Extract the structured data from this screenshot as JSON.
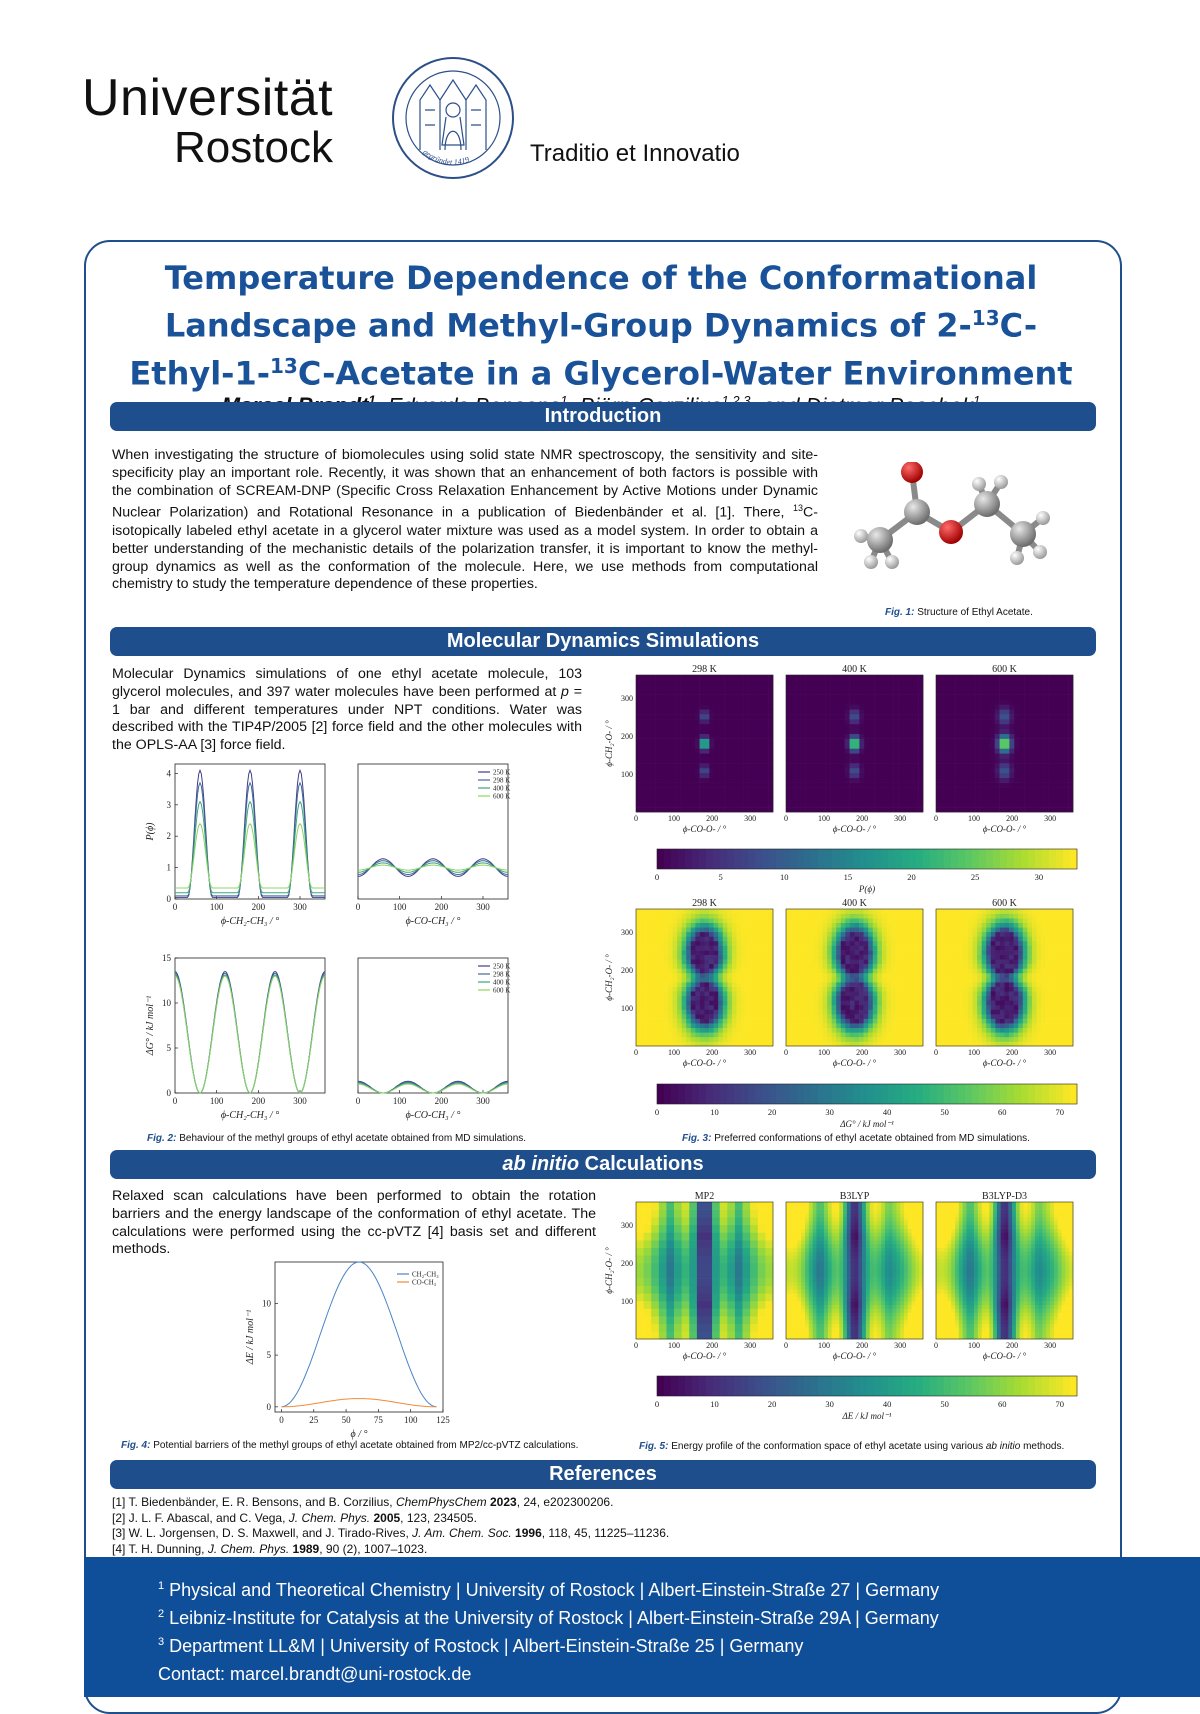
{
  "header": {
    "logo_line1": "Universität",
    "logo_line2": "Rostock",
    "seal_text": "gegründet 1419",
    "motto": "Traditio et Innovatio"
  },
  "title": {
    "line1": "Temperature Dependence of the Conformational",
    "line2a": "Landscape and Methyl-Group Dynamics of 2-",
    "sup1": "13",
    "line2b": "C-",
    "line3a": "Ethyl-1-",
    "sup2": "13",
    "line3b": "C-Acetate in a Glycerol-Water Environment"
  },
  "authors": {
    "presenter": "Marcel Brandt",
    "presenter_sup": "1",
    "a2": ", Edvards Bensons",
    "a2_sup": "1",
    "a3": ", Björn Corzilius",
    "a3_sup": "1,2,3",
    "a4": ", and Dietmar Paschek",
    "a4_sup": "1"
  },
  "intro": {
    "heading": "Introduction",
    "text_a": "When investigating the structure of biomolecules using solid state NMR spectroscopy, the sensitivity and site-specificity play an important role. Recently, it was shown that an enhancement of both factors is possible with the combination of SCREAM-DNP (Specific Cross Relaxation Enhancement by Active Motions under Dynamic Nuclear Polarization) and Rotational Resonance in a publication of Biedenbänder et al. [1]. There, ",
    "text_sup": "13",
    "text_b": "C-isotopically labeled ethyl acetate in a glycerol water mixture was used as a model system. In order to obtain a better understanding of the mechanistic details of the polarization transfer, it is important to know the methyl-group dynamics as well as the conformation of the molecule. Here, we use methods from computational chemistry to study the temperature dependence of these properties.",
    "fig1_label": "Fig. 1:",
    "fig1_text": "Structure of Ethyl Acetate."
  },
  "md": {
    "heading": "Molecular Dynamics Simulations",
    "text_a": "Molecular Dynamics simulations of one ethyl acetate molecule, 103 glycerol molecules, and 397 water molecules have been performed at ",
    "text_p": "p",
    "text_b": " = 1 bar and different temperatures under NPT conditions. Water was described with the TIP4P/2005 [2] force field and the other molecules with the OPLS-AA [3] force field.",
    "fig2_label": "Fig. 2:",
    "fig2_text": "Behaviour of the methyl groups of ethyl acetate obtained from MD simulations.",
    "fig3_label": "Fig. 3:",
    "fig3_text": "Preferred conformations of ethyl acetate obtained from MD simulations.",
    "top_titles": [
      "298 K",
      "400 K",
      "600 K"
    ],
    "bottom_titles": [
      "298 K",
      "400 K",
      "600 K"
    ],
    "cbar1_label": "P(ϕ)",
    "cbar1_ticks": [
      "0",
      "5",
      "10",
      "15",
      "20",
      "25",
      "30"
    ],
    "cbar2_label": "ΔG° / kJ mol⁻¹",
    "cbar2_ticks": [
      "0",
      "10",
      "20",
      "30",
      "40",
      "50",
      "60",
      "70"
    ],
    "heat_xlabel": "ϕ-CO-O- / °",
    "heat_ylabel": "ϕ-CH₂-O- / °"
  },
  "abinitio": {
    "heading_italic": "ab initio",
    "heading_rest": " Calculations",
    "text": "Relaxed scan calculations have been performed to obtain the rotation barriers and the energy landscape of the conformation of ethyl acetate. The calculations were performed using the cc-pVTZ [4] basis set and different methods.",
    "fig4_label": "Fig. 4:",
    "fig4_text": "Potential barriers of the methyl groups of ethyl acetate obtained from MP2/cc-pVTZ calculations.",
    "fig5_label": "Fig. 5:",
    "fig5_text_a": "Energy profile of the conformation space of ethyl acetate using various ",
    "fig5_text_i": "ab initio",
    "fig5_text_b": " methods.",
    "method_titles": [
      "MP2",
      "B3LYP",
      "B3LYP-D3"
    ],
    "cbar_label": "ΔE / kJ mol⁻¹",
    "cbar_ticks": [
      "0",
      "10",
      "20",
      "30",
      "40",
      "50",
      "60",
      "70"
    ]
  },
  "references": {
    "heading": "References",
    "r1a": "[1] T. Biedenbänder, E. R. Bensons, and B. Corzilius, ",
    "r1j": "ChemPhysChem",
    "r1y": " 2023",
    "r1b": ", 24, e202300206.",
    "r2a": "[2] J. L. F. Abascal, and C. Vega, ",
    "r2j": "J. Chem. Phys.",
    "r2y": " 2005",
    "r2b": ", 123, 234505.",
    "r3a": "[3] W. L. Jorgensen, D. S. Maxwell, and J. Tirado-Rives, ",
    "r3j": "J. Am. Chem. Soc.",
    "r3y": " 1996",
    "r3b": ", 118, 45, 11225–11236.",
    "r4a": "[4] T. H. Dunning, ",
    "r4j": "J. Chem. Phys.",
    "r4y": " 1989",
    "r4b": ", 90 (2), 1007–1023."
  },
  "footer": {
    "aff1_sup": "1",
    "aff1": " Physical and Theoretical Chemistry | University of Rostock | Albert-Einstein-Straße 27 | Germany",
    "aff2_sup": "2",
    "aff2": " Leibniz-Institute for Catalysis at the University of Rostock | Albert-Einstein-Straße 29A | Germany",
    "aff3_sup": "3",
    "aff3": " Department LL&M | University of Rostock | Albert-Einstein-Straße 25 | Germany",
    "contact": "Contact: marcel.brandt@uni-rostock.de"
  },
  "colors": {
    "brand_blue": "#1f4e8c",
    "title_blue": "#1a5299",
    "footer_blue": "#0f4e98"
  },
  "chart_data": [
    {
      "type": "line",
      "id": "fig2a",
      "xlabel": "ϕ-CH₂-CH₃ / °",
      "ylabel": "P(ϕ)",
      "xlim": [
        0,
        360
      ],
      "ylim": [
        0,
        4.3
      ],
      "xticks": [
        "0",
        "100",
        "200",
        "300"
      ],
      "yticks": [
        "0",
        "1",
        "2",
        "3",
        "4"
      ],
      "series": [
        {
          "name": "250 K",
          "peak": 4.1,
          "min": 0.05,
          "color": "#3e3d8c"
        },
        {
          "name": "298 K",
          "peak": 3.7,
          "min": 0.1,
          "color": "#3f6c96"
        },
        {
          "name": "400 K",
          "peak": 3.1,
          "min": 0.2,
          "color": "#3da57d"
        },
        {
          "name": "600 K",
          "peak": 2.4,
          "min": 0.35,
          "color": "#8bd464"
        }
      ]
    },
    {
      "type": "line",
      "id": "fig2b",
      "xlabel": "ϕ-CO-CH₃ / °",
      "ylabel": "",
      "xlim": [
        0,
        360
      ],
      "ylim": [
        0,
        4.3
      ],
      "xticks": [
        "0",
        "100",
        "200",
        "300"
      ],
      "yticks": [],
      "legend": [
        "250 K",
        "298 K",
        "400 K",
        "600 K"
      ],
      "series": [
        {
          "name": "250 K",
          "mean": 1.0,
          "amp": 0.28,
          "color": "#3e3d8c"
        },
        {
          "name": "298 K",
          "mean": 1.0,
          "amp": 0.22,
          "color": "#3f6c96"
        },
        {
          "name": "400 K",
          "mean": 1.0,
          "amp": 0.15,
          "color": "#3da57d"
        },
        {
          "name": "600 K",
          "mean": 1.0,
          "amp": 0.08,
          "color": "#8bd464"
        }
      ]
    },
    {
      "type": "line",
      "id": "fig2c",
      "xlabel": "ϕ-CH₂-CH₃ / °",
      "ylabel": "ΔG° / kJ mol⁻¹",
      "xlim": [
        0,
        360
      ],
      "ylim": [
        0,
        15
      ],
      "xticks": [
        "0",
        "100",
        "200",
        "300"
      ],
      "yticks": [
        "0",
        "5",
        "10",
        "15"
      ],
      "series": [
        {
          "name": "250 K",
          "max": 13.5,
          "color": "#3e3d8c"
        },
        {
          "name": "298 K",
          "max": 13.3,
          "color": "#3f6c96"
        },
        {
          "name": "400 K",
          "max": 13.1,
          "color": "#3da57d"
        },
        {
          "name": "600 K",
          "max": 13.0,
          "color": "#8bd464"
        }
      ]
    },
    {
      "type": "line",
      "id": "fig2d",
      "xlabel": "ϕ-CO-CH₃ / °",
      "ylabel": "",
      "xlim": [
        0,
        360
      ],
      "ylim": [
        0,
        15
      ],
      "xticks": [
        "0",
        "100",
        "200",
        "300"
      ],
      "yticks": [],
      "legend": [
        "250 K",
        "298 K",
        "400 K",
        "600 K"
      ],
      "series": [
        {
          "name": "250 K",
          "max": 1.3,
          "color": "#3e3d8c"
        },
        {
          "name": "298 K",
          "max": 1.2,
          "color": "#3f6c96"
        },
        {
          "name": "400 K",
          "max": 1.1,
          "color": "#3da57d"
        },
        {
          "name": "600 K",
          "max": 1.0,
          "color": "#8bd464"
        }
      ]
    },
    {
      "type": "line",
      "id": "fig4",
      "xlabel": "ϕ / °",
      "ylabel": "ΔE / kJ mol⁻¹",
      "xlim": [
        -5,
        125
      ],
      "ylim": [
        -0.5,
        14
      ],
      "xticks": [
        "0",
        "25",
        "50",
        "75",
        "100",
        "125"
      ],
      "yticks": [
        "0",
        "5",
        "10"
      ],
      "series": [
        {
          "name": "CH₂-CH₃",
          "max": 14.0,
          "color": "#4b84c4"
        },
        {
          "name": "CO-CH₃",
          "max": 0.8,
          "color": "#ee8a3c"
        }
      ]
    },
    {
      "type": "heatmap",
      "id": "fig3",
      "xlim": [
        0,
        360
      ],
      "ylim": [
        0,
        360
      ],
      "xticks": [
        "0",
        "100",
        "200",
        "300"
      ],
      "yticks": [
        "100",
        "200",
        "300"
      ],
      "panels_top": [
        "298 K",
        "400 K",
        "600 K"
      ],
      "panels_bottom": [
        "298 K",
        "400 K",
        "600 K"
      ]
    },
    {
      "type": "heatmap",
      "id": "fig5",
      "xlim": [
        0,
        360
      ],
      "ylim": [
        0,
        360
      ],
      "xticks": [
        "0",
        "100",
        "200",
        "300"
      ],
      "yticks": [
        "100",
        "200",
        "300"
      ],
      "panels": [
        "MP2",
        "B3LYP",
        "B3LYP-D3"
      ]
    }
  ]
}
